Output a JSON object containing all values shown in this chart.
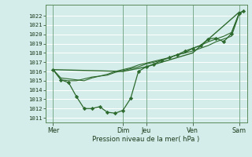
{
  "bg_color": "#d4ecea",
  "plot_bg": "#d4ecea",
  "grid_color": "#ffffff",
  "line_color": "#2d6a2d",
  "marker_color": "#2d6a2d",
  "xlabel_text": "Pression niveau de la mer( hPa )",
  "ylim_min": 1010.5,
  "ylim_max": 1023.2,
  "yticks": [
    1011,
    1012,
    1013,
    1014,
    1015,
    1016,
    1017,
    1018,
    1019,
    1020,
    1021,
    1022
  ],
  "xtick_labels": [
    "Mer",
    "Dim",
    "Jeu",
    "Ven",
    "Sam"
  ],
  "xtick_positions": [
    0,
    36,
    48,
    72,
    96
  ],
  "xlim_min": -4,
  "xlim_max": 100,
  "series1_x": [
    0,
    4,
    8,
    12,
    16,
    20,
    24,
    28,
    32,
    36,
    40,
    44,
    48,
    52,
    56,
    60,
    64,
    68,
    72,
    76,
    80,
    84,
    88,
    92,
    96,
    98
  ],
  "series1_y": [
    1016.2,
    1015.1,
    1014.8,
    1013.3,
    1012.0,
    1012.0,
    1012.2,
    1011.6,
    1011.5,
    1011.8,
    1013.1,
    1016.0,
    1016.5,
    1016.8,
    1017.2,
    1017.5,
    1017.8,
    1018.2,
    1018.5,
    1018.8,
    1019.5,
    1019.6,
    1019.2,
    1020.1,
    1022.3,
    1022.5
  ],
  "series2_x": [
    0,
    4,
    8,
    12,
    16,
    20,
    24,
    28,
    32,
    36,
    40,
    44,
    48,
    52,
    56,
    60,
    64,
    68,
    72,
    76,
    80,
    84,
    88,
    92,
    96,
    98
  ],
  "series2_y": [
    1016.2,
    1015.3,
    1015.2,
    1015.1,
    1015.0,
    1015.3,
    1015.5,
    1015.6,
    1015.9,
    1016.1,
    1016.3,
    1016.5,
    1016.8,
    1017.0,
    1017.2,
    1017.5,
    1017.8,
    1018.0,
    1018.2,
    1018.5,
    1018.8,
    1019.2,
    1019.5,
    1019.8,
    1022.2,
    1022.5
  ],
  "series3_x": [
    0,
    4,
    8,
    12,
    16,
    20,
    24,
    28,
    32,
    36,
    40,
    44,
    48,
    52,
    56,
    60,
    64,
    68,
    72,
    76,
    80,
    84,
    88,
    92,
    96,
    98
  ],
  "series3_y": [
    1016.2,
    1015.1,
    1015.0,
    1015.0,
    1015.2,
    1015.4,
    1015.5,
    1015.7,
    1016.0,
    1016.2,
    1016.4,
    1016.7,
    1016.9,
    1017.1,
    1017.3,
    1017.5,
    1017.8,
    1018.0,
    1018.5,
    1018.8,
    1019.2,
    1019.5,
    1019.8,
    1020.2,
    1022.3,
    1022.5
  ],
  "series4_x": [
    0,
    36,
    48,
    72,
    96
  ],
  "series4_y": [
    1016.2,
    1016.0,
    1016.5,
    1018.0,
    1022.4
  ],
  "vline_positions": [
    0,
    36,
    48,
    72,
    96
  ],
  "vline_color": "#7aaa8a",
  "spine_color": "#5a8a5a"
}
